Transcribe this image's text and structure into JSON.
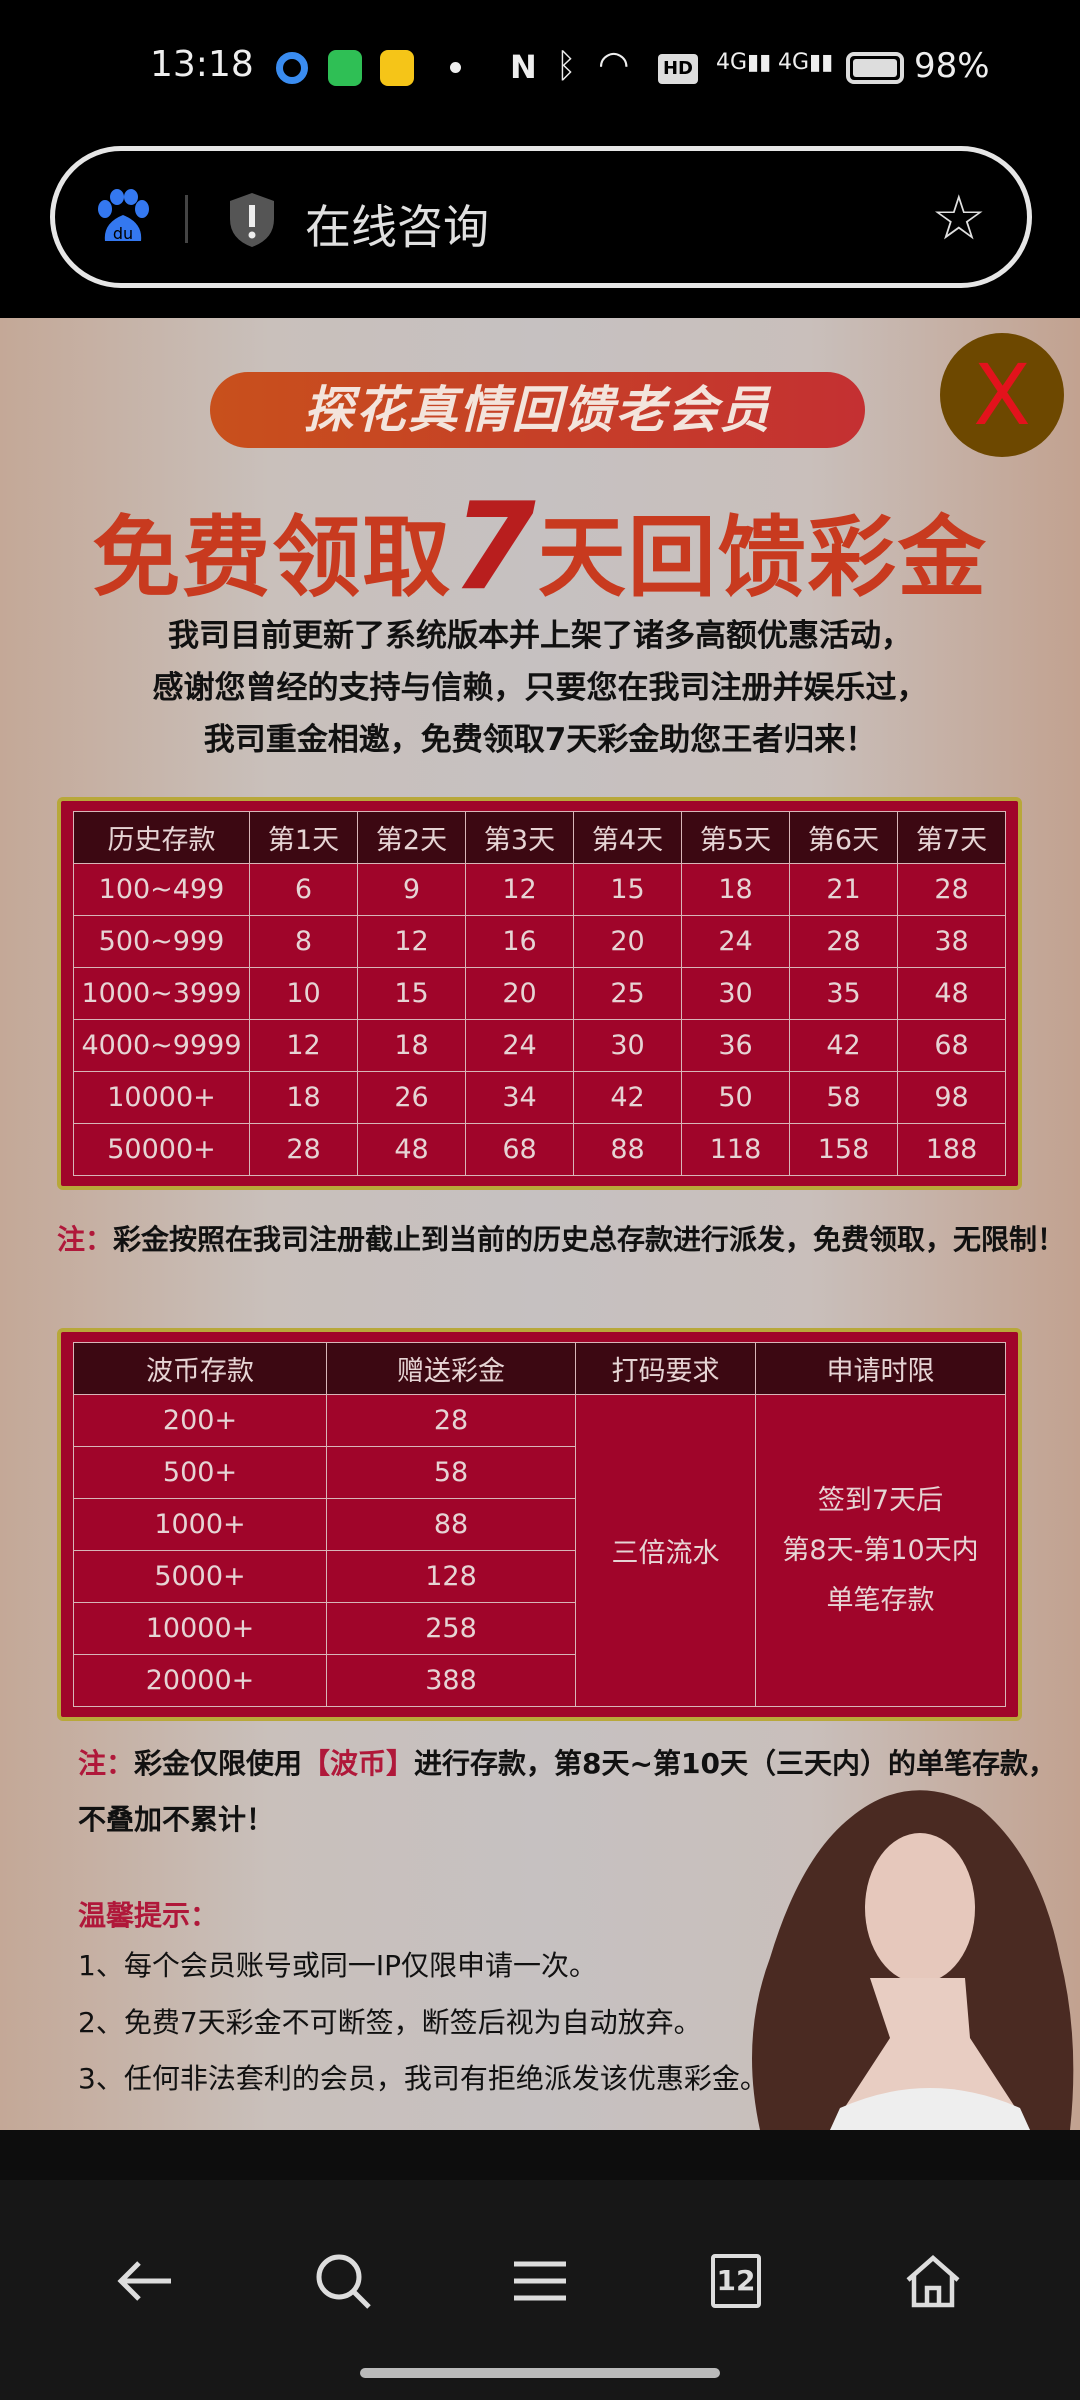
{
  "status_bar": {
    "time": "13:18",
    "battery": "98%",
    "notification_icons": [
      "qq-browser-icon",
      "messages-icon",
      "meituan-icon"
    ],
    "system_icons": [
      "nfc-icon",
      "bluetooth-icon",
      "wifi-icon",
      "hd-icon",
      "signal-4g-icon",
      "signal-4g-icon",
      "battery-icon"
    ]
  },
  "browser": {
    "url_title": "在线咨询",
    "left_icon": "baidu-paw-icon",
    "security_icon": "shield-warning-icon",
    "bookmark_icon": "star-icon"
  },
  "promo": {
    "close_label": "X",
    "banner": "探花真情回馈老会员",
    "title_pre": "免费领取",
    "title_num": "7",
    "title_post": "天回馈彩金",
    "intro": [
      "我司目前更新了系统版本并上架了诸多高额优惠活动，",
      "感谢您曾经的支持与信赖，只要您在我司注册并娱乐过，",
      "我司重金相邀，免费领取7天彩金助您王者归来！"
    ],
    "table1": {
      "headers": [
        "历史存款",
        "第1天",
        "第2天",
        "第3天",
        "第4天",
        "第5天",
        "第6天",
        "第7天"
      ],
      "rows": [
        [
          "100~499",
          "6",
          "9",
          "12",
          "15",
          "18",
          "21",
          "28"
        ],
        [
          "500~999",
          "8",
          "12",
          "16",
          "20",
          "24",
          "28",
          "38"
        ],
        [
          "1000~3999",
          "10",
          "15",
          "20",
          "25",
          "30",
          "35",
          "48"
        ],
        [
          "4000~9999",
          "12",
          "18",
          "24",
          "30",
          "36",
          "42",
          "68"
        ],
        [
          "10000+",
          "18",
          "26",
          "34",
          "42",
          "50",
          "58",
          "98"
        ],
        [
          "50000+",
          "28",
          "48",
          "68",
          "88",
          "118",
          "158",
          "188"
        ]
      ]
    },
    "note1_label": "注：",
    "note1": "彩金按照在我司注册截止到当前的历史总存款进行派发，免费领取，无限制！",
    "table2": {
      "headers": [
        "波币存款",
        "赠送彩金",
        "打码要求",
        "申请时限"
      ],
      "rows": [
        [
          "200+",
          "28"
        ],
        [
          "500+",
          "58"
        ],
        [
          "1000+",
          "88"
        ],
        [
          "5000+",
          "128"
        ],
        [
          "10000+",
          "258"
        ],
        [
          "20000+",
          "388"
        ]
      ],
      "requirement": "三倍流水",
      "time_limit": [
        "签到7天后",
        "第8天-第10天内",
        "单笔存款"
      ]
    },
    "note2_label": "注：",
    "note2_a": "彩金仅限使用",
    "note2_hl": "【波币】",
    "note2_b": "进行存款，第8天~第10天（三天内）的单笔存款，",
    "note2_c": "不叠加不累计！",
    "tips_title": "温馨提示：",
    "tips": [
      "1、每个会员账号或同一IP仅限申请一次。",
      "2、免费7天彩金不可断签，断签后视为自动放弃。",
      "3、任何非法套利的会员，我司有拒绝派发该优惠彩金。"
    ]
  },
  "nav": {
    "tab_count": "12",
    "icons": [
      "back-arrow-icon",
      "search-icon",
      "menu-icon",
      "tabs-icon",
      "home-icon"
    ]
  }
}
